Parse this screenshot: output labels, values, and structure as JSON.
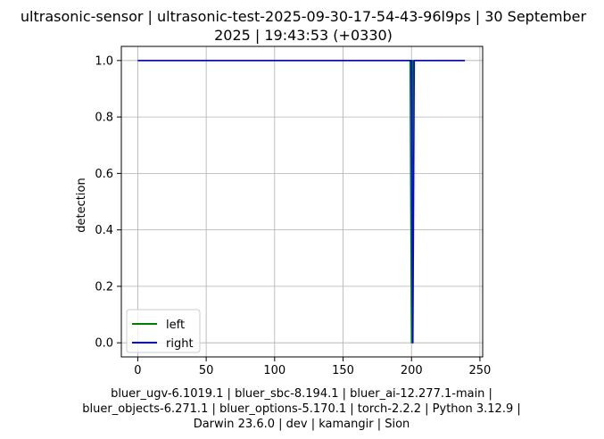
{
  "chart_data": {
    "type": "line",
    "title_lines": [
      "ultrasonic-sensor | ultrasonic-test-2025-09-30-17-54-43-96l9ps | 30 September",
      "2025 | 19:43:53 (+0330)"
    ],
    "xlabel_lines": [
      "bluer_ugv-6.1019.1 | bluer_sbc-8.194.1 | bluer_ai-12.277.1-main |",
      "bluer_objects-6.271.1 | bluer_options-5.170.1 | torch-2.2.2 | Python 3.12.9 |",
      "Darwin 23.6.0 | dev | kamangir | Sion"
    ],
    "ylabel": "detection",
    "xlim": [
      -12,
      252
    ],
    "ylim": [
      -0.05,
      1.05
    ],
    "xticks": [
      0,
      50,
      100,
      150,
      200,
      250
    ],
    "yticks": [
      0.0,
      0.2,
      0.4,
      0.6,
      0.8,
      1.0
    ],
    "xtick_labels": [
      "0",
      "50",
      "100",
      "150",
      "200",
      "250"
    ],
    "ytick_labels": [
      "0.0",
      "0.2",
      "0.4",
      "0.6",
      "0.8",
      "1.0"
    ],
    "grid": true,
    "legend_placement": "lower-left",
    "series": [
      {
        "name": "left",
        "color": "#008000",
        "x": [
          0,
          199,
          200,
          201,
          202,
          239
        ],
        "y": [
          1,
          1,
          0,
          1,
          1,
          1
        ]
      },
      {
        "name": "right",
        "color": "#0000ff",
        "x": [
          0,
          200,
          201,
          202,
          239
        ],
        "y": [
          1,
          1,
          0,
          1,
          1
        ]
      }
    ]
  }
}
